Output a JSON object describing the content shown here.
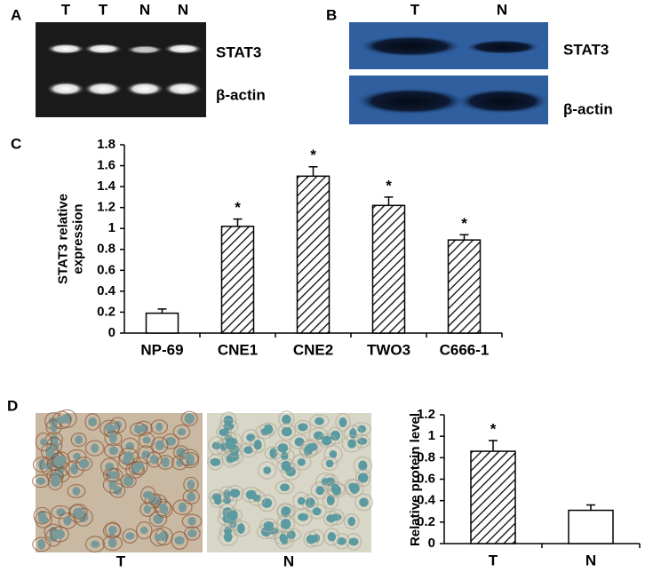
{
  "panel_labels": [
    "A",
    "B",
    "C",
    "D"
  ],
  "gel_a": {
    "lanes": [
      "T",
      "T",
      "N",
      "N"
    ],
    "bands": [
      "STAT3",
      "β-actin"
    ]
  },
  "blot_b": {
    "lanes": [
      "T",
      "N"
    ],
    "bands": [
      "STAT3",
      "β-actin"
    ]
  },
  "ihc_d": {
    "labels": [
      "T",
      "N"
    ]
  },
  "chart_data": [
    {
      "type": "bar",
      "ylabel": [
        "STAT3 relative",
        "expression"
      ],
      "categories": [
        "NP-69",
        "CNE1",
        "CNE2",
        "TWO3",
        "C666-1"
      ],
      "values": [
        0.19,
        1.02,
        1.5,
        1.22,
        0.89
      ],
      "errors": [
        0.04,
        0.07,
        0.09,
        0.08,
        0.05
      ],
      "markers": [
        null,
        "*",
        "*",
        "*",
        "*"
      ],
      "hatch": [
        false,
        true,
        true,
        true,
        true
      ],
      "ylim": [
        0,
        1.8
      ],
      "yticks": [
        0,
        0.2,
        0.4,
        0.6,
        0.8,
        1,
        1.2,
        1.4,
        1.6,
        1.8
      ],
      "color": "#000000"
    },
    {
      "type": "bar",
      "ylabel": [
        "Relative protein level"
      ],
      "categories": [
        "T",
        "N"
      ],
      "values": [
        0.86,
        0.31
      ],
      "errors": [
        0.1,
        0.05
      ],
      "markers": [
        "*",
        null
      ],
      "hatch": [
        true,
        false
      ],
      "ylim": [
        0,
        1.2
      ],
      "yticks": [
        0,
        0.2,
        0.4,
        0.6,
        0.8,
        1,
        1.2
      ],
      "color": "#000000"
    }
  ]
}
